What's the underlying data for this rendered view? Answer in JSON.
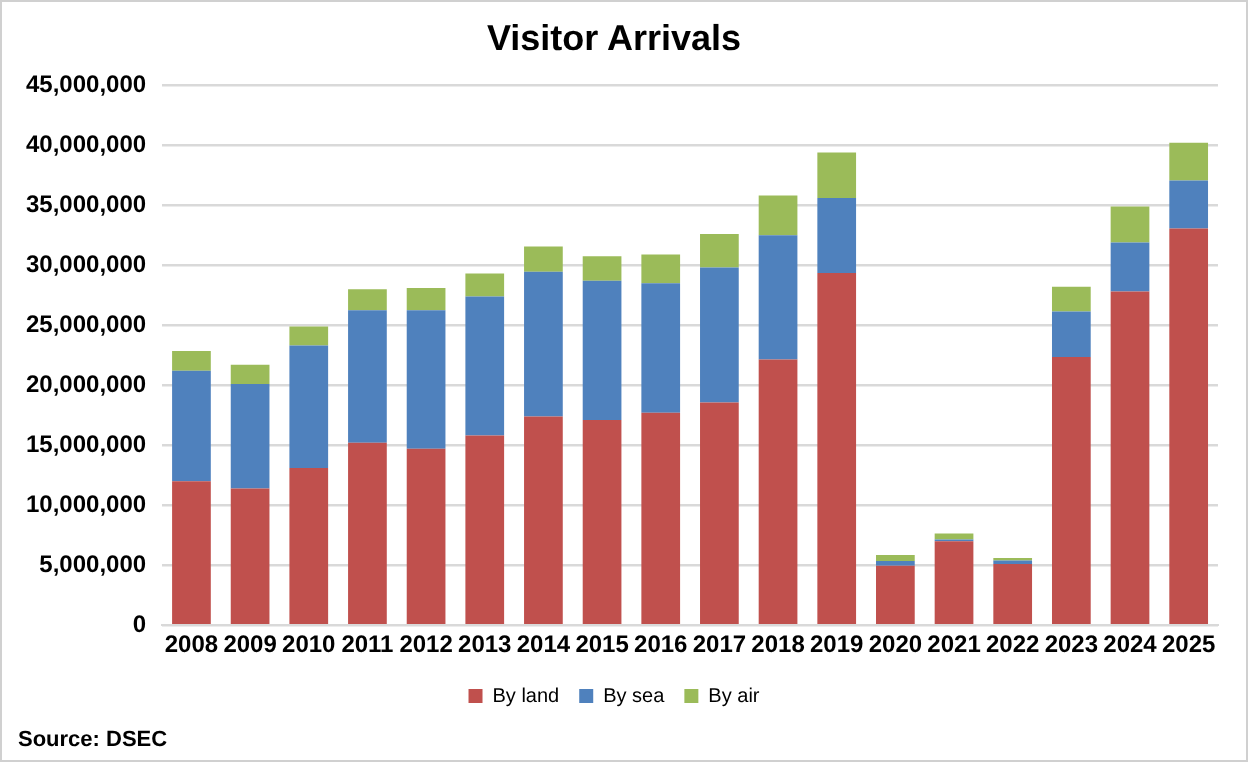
{
  "chart_data": {
    "type": "bar",
    "title": "Visitor Arrivals",
    "stacked": true,
    "categories": [
      "2008",
      "2009",
      "2010",
      "2011",
      "2012",
      "2013",
      "2014",
      "2015",
      "2016",
      "2017",
      "2018",
      "2019",
      "2020",
      "2021",
      "2022",
      "2023",
      "2024",
      "2025"
    ],
    "series": [
      {
        "name": "By land",
        "color": "#c0504d",
        "values": [
          12000000,
          11400000,
          13100000,
          15200000,
          14700000,
          15800000,
          17400000,
          17100000,
          17700000,
          18550000,
          22150000,
          29350000,
          4950000,
          7000000,
          5100000,
          22350000,
          27800000,
          33050000
        ]
      },
      {
        "name": "By sea",
        "color": "#4f81bd",
        "values": [
          9200000,
          8700000,
          10200000,
          11050000,
          11550000,
          11600000,
          12050000,
          11600000,
          10800000,
          11250000,
          10350000,
          6250000,
          400000,
          150000,
          300000,
          3800000,
          4100000,
          4000000
        ]
      },
      {
        "name": "By air",
        "color": "#9bbb59",
        "values": [
          1650000,
          1600000,
          1600000,
          1750000,
          1850000,
          1900000,
          2100000,
          2050000,
          2400000,
          2800000,
          3300000,
          3800000,
          500000,
          500000,
          200000,
          2050000,
          3000000,
          3150000
        ]
      }
    ],
    "ylim": [
      0,
      45000000
    ],
    "yticks": [
      {
        "value": 0,
        "label": "0"
      },
      {
        "value": 5000000,
        "label": "5,000,000"
      },
      {
        "value": 10000000,
        "label": "10,000,000"
      },
      {
        "value": 15000000,
        "label": "15,000,000"
      },
      {
        "value": 20000000,
        "label": "20,000,000"
      },
      {
        "value": 25000000,
        "label": "25,000,000"
      },
      {
        "value": 30000000,
        "label": "30,000,000"
      },
      {
        "value": 35000000,
        "label": "35,000,000"
      },
      {
        "value": 40000000,
        "label": "40,000,000"
      },
      {
        "value": 45000000,
        "label": "45,000,000"
      }
    ],
    "grid": "y",
    "legend": "bottom",
    "annotations": [
      "Source: DSEC"
    ]
  }
}
